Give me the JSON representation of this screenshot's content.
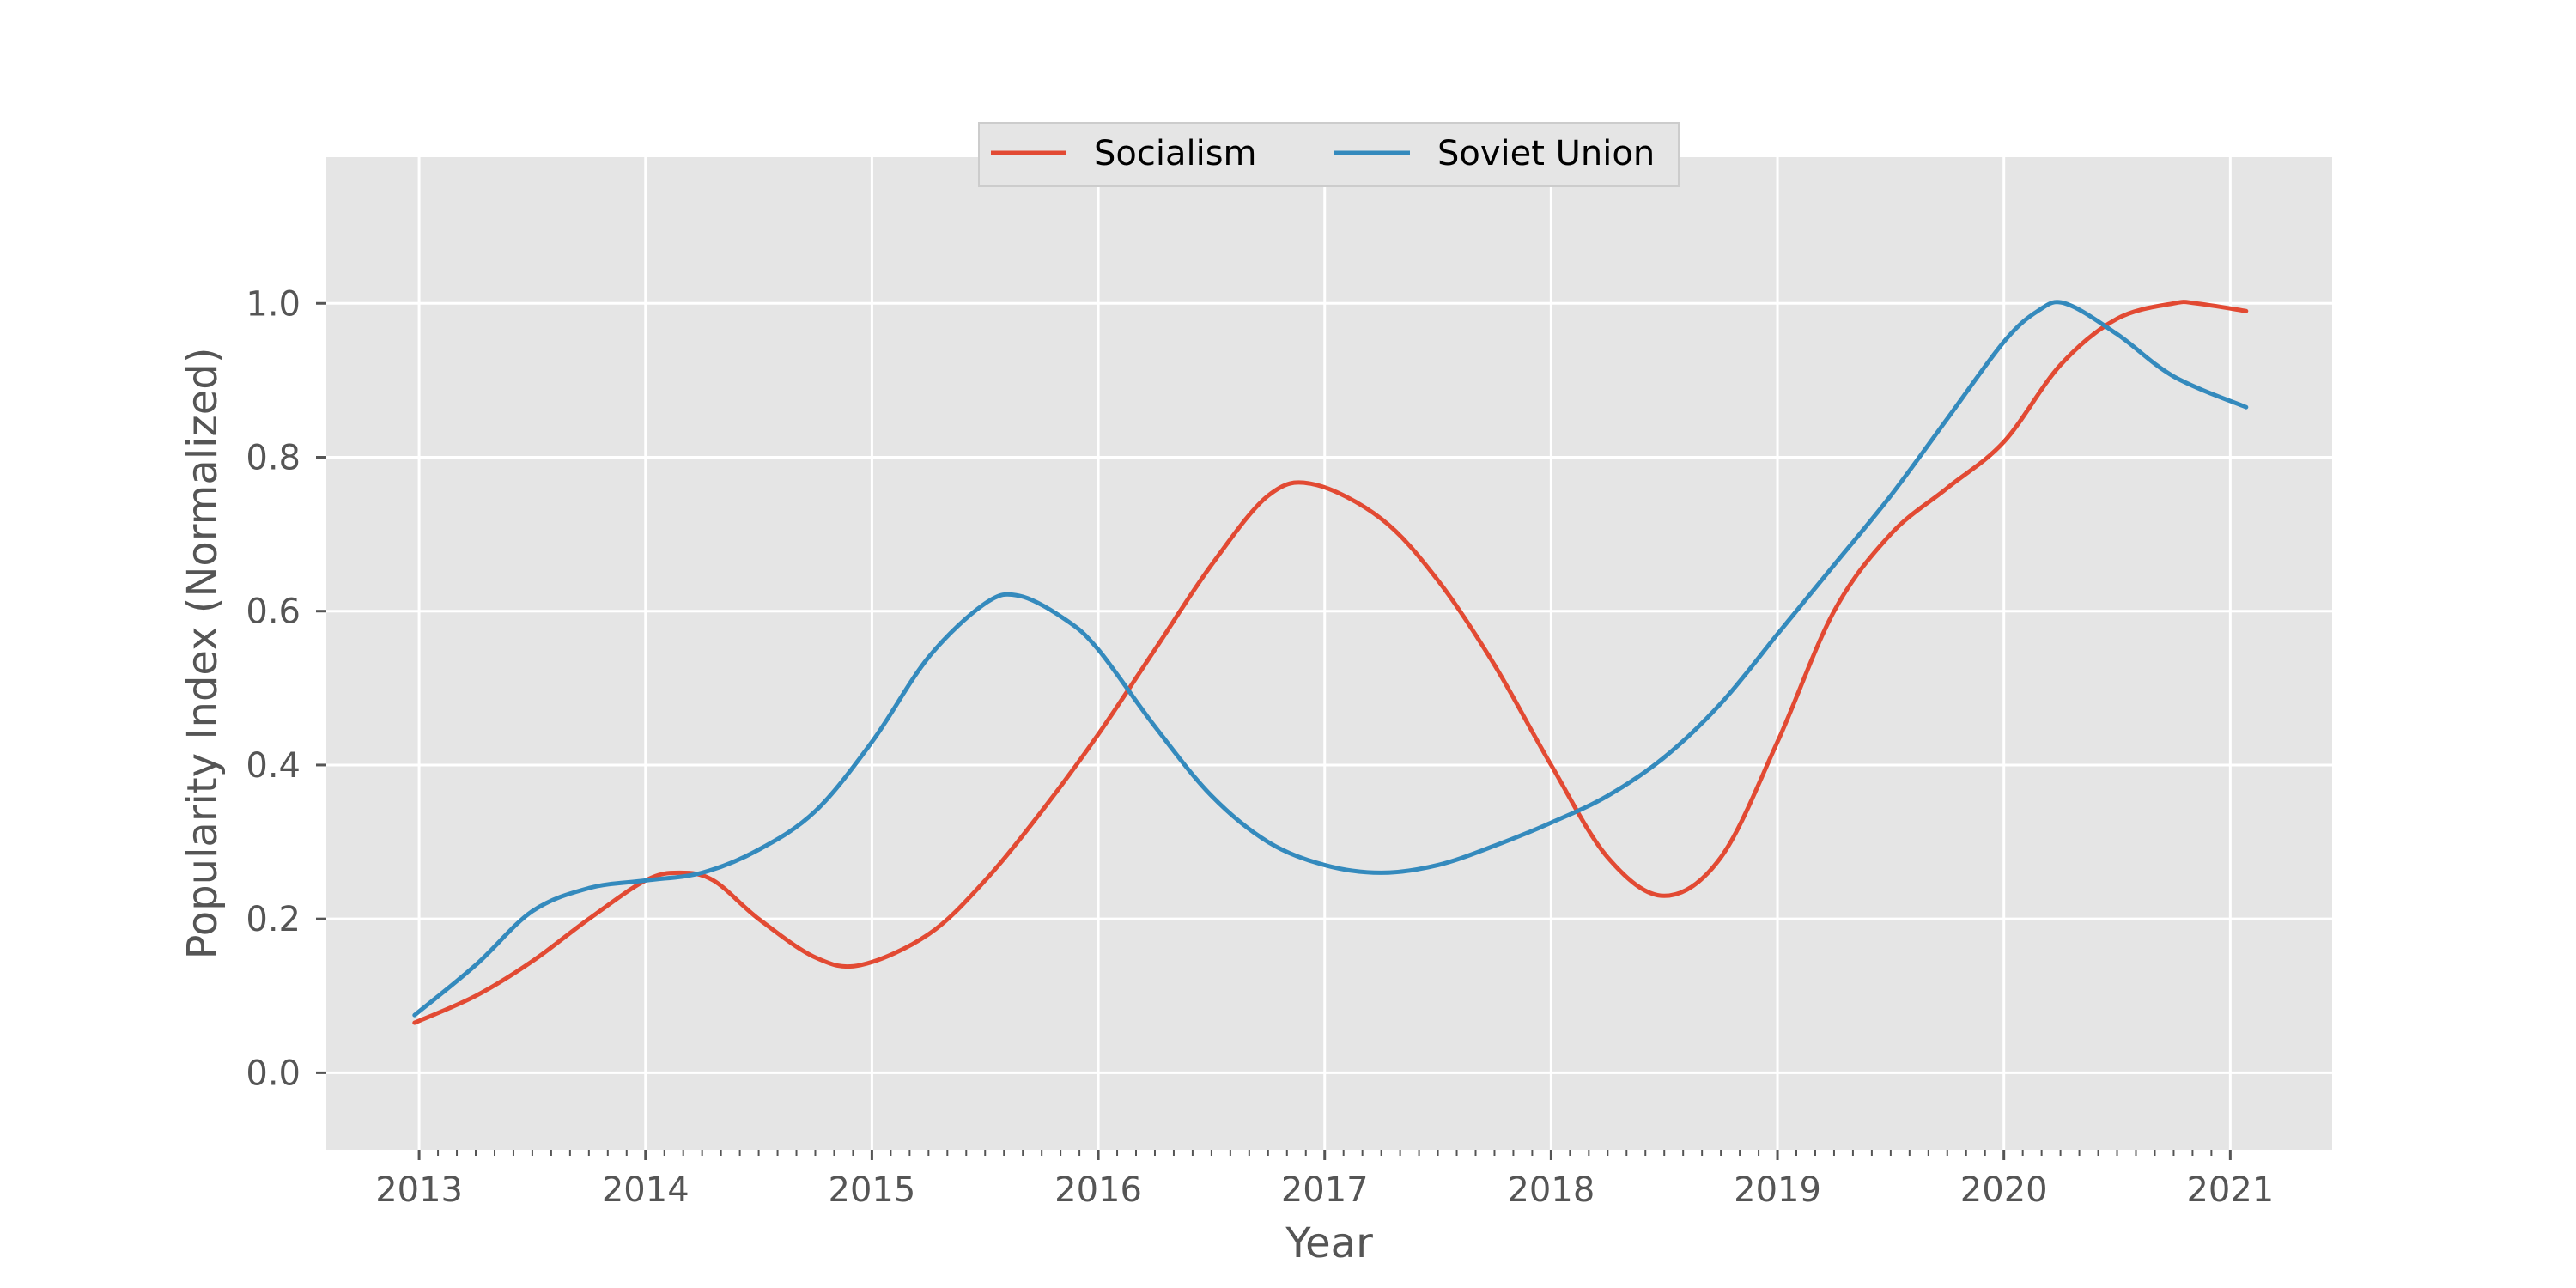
{
  "chart_data": {
    "type": "line",
    "xlabel": "Year",
    "ylabel": "Popularity Index (Normalized)",
    "xlim": [
      2012.59,
      2021.45
    ],
    "ylim": [
      -0.1,
      1.19
    ],
    "x_ticks": [
      2013,
      2014,
      2015,
      2016,
      2017,
      2018,
      2019,
      2020,
      2021
    ],
    "x_tick_labels": [
      "2013",
      "2014",
      "2015",
      "2016",
      "2017",
      "2018",
      "2019",
      "2020",
      "2021"
    ],
    "y_ticks": [
      0.0,
      0.2,
      0.4,
      0.6,
      0.8,
      1.0
    ],
    "y_tick_labels": [
      "0.0",
      "0.2",
      "0.4",
      "0.6",
      "0.8",
      "1.0"
    ],
    "grid": true,
    "legend_position": "top-center",
    "x_minor_ticks": "monthly",
    "series": [
      {
        "name": "Socialism",
        "color": "#E24A33",
        "x": [
          2012.98,
          2013.25,
          2013.5,
          2013.75,
          2014.0,
          2014.15,
          2014.3,
          2014.5,
          2014.75,
          2014.95,
          2015.25,
          2015.5,
          2015.75,
          2016.0,
          2016.25,
          2016.5,
          2016.75,
          2016.95,
          2017.25,
          2017.5,
          2017.75,
          2018.0,
          2018.25,
          2018.5,
          2018.75,
          2019.0,
          2019.25,
          2019.5,
          2019.75,
          2020.0,
          2020.25,
          2020.5,
          2020.75,
          2020.85,
          2021.07
        ],
        "y": [
          0.065,
          0.1,
          0.145,
          0.2,
          0.25,
          0.26,
          0.25,
          0.2,
          0.15,
          0.14,
          0.18,
          0.25,
          0.34,
          0.44,
          0.55,
          0.66,
          0.75,
          0.765,
          0.72,
          0.64,
          0.53,
          0.4,
          0.28,
          0.23,
          0.28,
          0.43,
          0.6,
          0.7,
          0.76,
          0.82,
          0.92,
          0.98,
          1.0,
          1.0,
          0.99
        ]
      },
      {
        "name": "Soviet Union",
        "color": "#348ABD",
        "x": [
          2012.98,
          2013.25,
          2013.5,
          2013.75,
          2014.0,
          2014.25,
          2014.5,
          2014.75,
          2015.0,
          2015.25,
          2015.5,
          2015.65,
          2015.85,
          2016.0,
          2016.25,
          2016.5,
          2016.75,
          2017.0,
          2017.25,
          2017.5,
          2017.75,
          2018.0,
          2018.25,
          2018.5,
          2018.75,
          2019.0,
          2019.25,
          2019.5,
          2019.75,
          2020.0,
          2020.15,
          2020.27,
          2020.5,
          2020.75,
          2021.07
        ],
        "y": [
          0.075,
          0.14,
          0.21,
          0.24,
          0.25,
          0.26,
          0.29,
          0.34,
          0.43,
          0.54,
          0.61,
          0.62,
          0.59,
          0.55,
          0.45,
          0.36,
          0.3,
          0.27,
          0.26,
          0.27,
          0.295,
          0.325,
          0.36,
          0.41,
          0.48,
          0.57,
          0.66,
          0.75,
          0.85,
          0.95,
          0.99,
          1.0,
          0.96,
          0.905,
          0.865
        ]
      }
    ]
  }
}
